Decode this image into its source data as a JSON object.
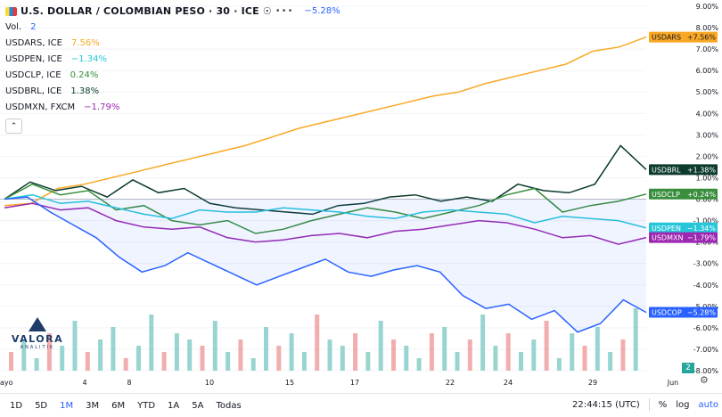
{
  "header": {
    "title": "U.S. DOLLAR / COLOMBIAN PESO · 30 · ICE",
    "change": "−5.28%",
    "vol_label": "Vol.",
    "vol_value": "2"
  },
  "legend": [
    {
      "name": "USDARS, ICE",
      "change": "7.56%",
      "color": "#f9a825"
    },
    {
      "name": "USDPEN, ICE",
      "change": "−1.34%",
      "color": "#26c6da"
    },
    {
      "name": "USDCLP, ICE",
      "change": "0.24%",
      "color": "#388e3c"
    },
    {
      "name": "USDBRL, ICE",
      "change": "1.38%",
      "color": "#0d3b2e"
    },
    {
      "name": "USDMXN, FXCM",
      "change": "−1.79%",
      "color": "#9c27b0"
    }
  ],
  "logo": {
    "name": "VALORA",
    "sub": "ANALITIK"
  },
  "toolbar": {
    "timeframes": [
      "1D",
      "5D",
      "1M",
      "3M",
      "6M",
      "YTD",
      "1A",
      "5A",
      "Todas"
    ],
    "active": "1M",
    "time": "22:44:15 (UTC)",
    "percent": "%",
    "log": "log",
    "auto": "auto"
  },
  "pane_badge": "2",
  "chart_data": {
    "type": "line",
    "x_labels": [
      "ayo",
      "4",
      "8",
      "10",
      "15",
      "17",
      "22",
      "24",
      "29",
      "Jun"
    ],
    "y_ticks": [
      "9.00%",
      "8.00%",
      "7.00%",
      "6.00%",
      "5.00%",
      "4.00%",
      "3.00%",
      "2.00%",
      "1.00%",
      "0.00%",
      "-1.00%",
      "-2.00%",
      "-3.00%",
      "-4.00%",
      "-5.00%",
      "-6.00%",
      "-7.00%",
      "-8.00%"
    ],
    "ylim": [
      -8,
      9
    ],
    "series": [
      {
        "name": "USDARS",
        "label": "USDARS",
        "label_value": "+7.56%",
        "color": "#f9a825",
        "text": "#131722",
        "values": [
          -0.3,
          -0.2,
          0.5,
          0.7,
          1.0,
          1.3,
          1.6,
          1.9,
          2.2,
          2.5,
          2.9,
          3.3,
          3.6,
          3.9,
          4.2,
          4.5,
          4.8,
          5.0,
          5.4,
          5.7,
          6.0,
          6.3,
          6.9,
          7.1,
          7.56
        ]
      },
      {
        "name": "USDBRL",
        "label": "USDBRL",
        "label_value": "+1.38%",
        "color": "#0d3b2e",
        "text": "#ffffff",
        "values": [
          0.0,
          0.8,
          0.4,
          0.6,
          0.1,
          0.9,
          0.3,
          0.5,
          -0.2,
          -0.4,
          -0.5,
          -0.6,
          -0.7,
          -0.3,
          -0.2,
          0.1,
          0.2,
          -0.1,
          0.1,
          -0.1,
          0.7,
          0.4,
          0.3,
          0.7,
          2.5,
          1.38
        ]
      },
      {
        "name": "USDCLP",
        "label": "USDCLP",
        "label_value": "+0.24%",
        "color": "#388e3c",
        "text": "#ffffff",
        "values": [
          0.0,
          0.7,
          0.2,
          0.4,
          -0.5,
          -0.3,
          -1.0,
          -1.2,
          -1.0,
          -1.6,
          -1.4,
          -1.0,
          -0.7,
          -0.4,
          -0.6,
          -0.9,
          -0.6,
          -0.3,
          0.2,
          0.5,
          -0.6,
          -0.3,
          -0.1,
          0.24
        ]
      },
      {
        "name": "USDPEN",
        "label": "USDPEN",
        "label_value": "−1.34%",
        "color": "#26c6da",
        "text": "#ffffff",
        "values": [
          0.0,
          0.2,
          -0.2,
          -0.1,
          -0.4,
          -0.7,
          -0.9,
          -0.5,
          -0.6,
          -0.6,
          -0.4,
          -0.5,
          -0.6,
          -0.8,
          -0.9,
          -0.6,
          -0.5,
          -0.6,
          -0.7,
          -1.1,
          -0.8,
          -0.9,
          -1.0,
          -1.34
        ]
      },
      {
        "name": "USDMXN",
        "label": "USDMXN",
        "label_value": "−1.79%",
        "color": "#9c27b0",
        "text": "#ffffff",
        "values": [
          -0.4,
          -0.2,
          -0.5,
          -0.4,
          -1.0,
          -1.3,
          -1.4,
          -1.3,
          -1.8,
          -2.0,
          -1.9,
          -1.7,
          -1.6,
          -1.8,
          -1.5,
          -1.4,
          -1.2,
          -1.0,
          -1.1,
          -1.4,
          -1.8,
          -1.7,
          -2.1,
          -1.79
        ]
      },
      {
        "name": "USDCOP",
        "label": "USDCOP",
        "label_value": "−5.28%",
        "color": "#2962ff",
        "text": "#ffffff",
        "values": [
          0.0,
          0.1,
          -0.6,
          -1.2,
          -1.8,
          -2.7,
          -3.4,
          -3.1,
          -2.5,
          -3.0,
          -3.5,
          -4.0,
          -3.6,
          -3.2,
          -2.8,
          -3.4,
          -3.6,
          -3.3,
          -3.1,
          -3.4,
          -4.5,
          -5.1,
          -4.9,
          -5.6,
          -5.2,
          -6.2,
          -5.8,
          -4.7,
          -5.28
        ]
      }
    ],
    "volume": [
      3,
      5,
      2,
      6,
      4,
      8,
      3,
      5,
      7,
      2,
      4,
      9,
      3,
      6,
      5,
      4,
      8,
      3,
      5,
      2,
      7,
      4,
      6,
      3,
      9,
      5,
      4,
      6,
      3,
      8,
      5,
      4,
      2,
      6,
      7,
      3,
      5,
      9,
      4,
      6,
      3,
      5,
      8,
      2,
      6,
      4,
      7,
      3,
      5,
      10
    ],
    "grid": true
  }
}
